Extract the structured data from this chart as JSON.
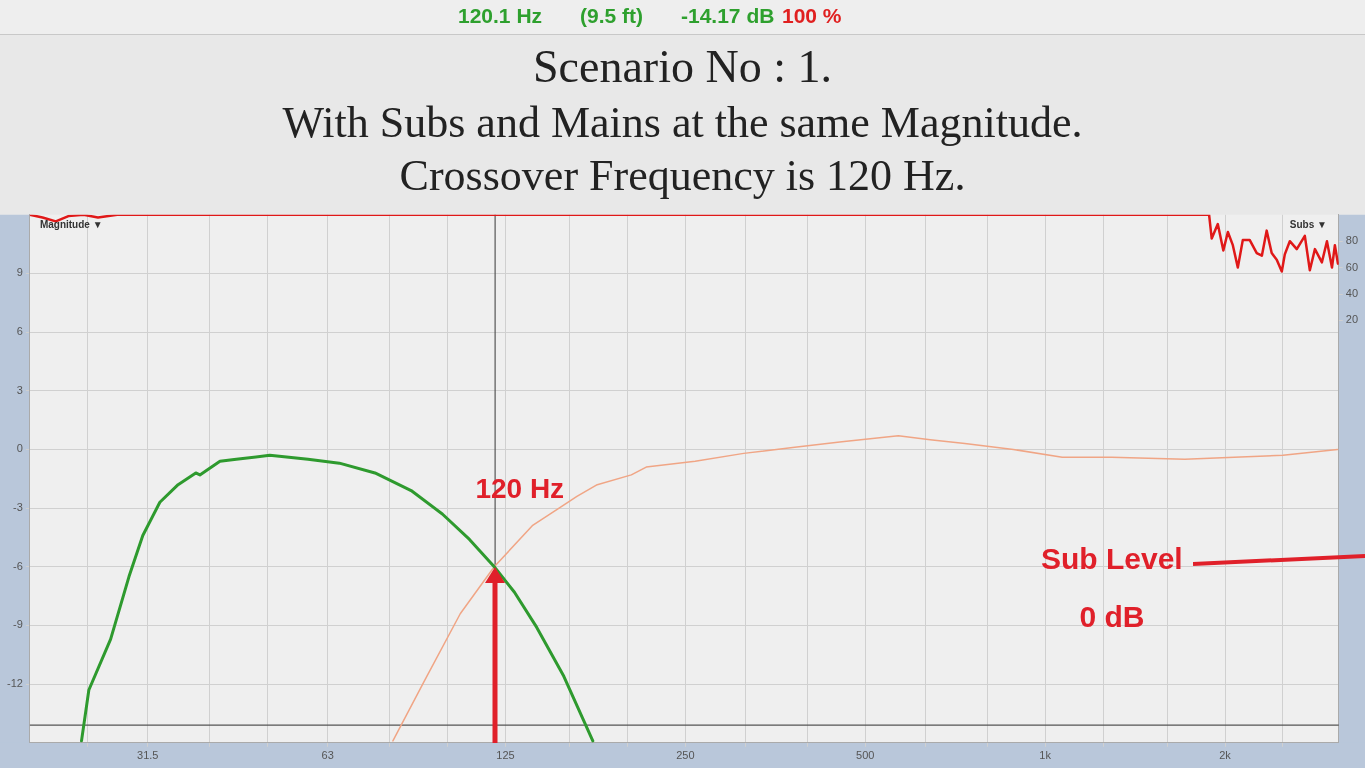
{
  "chart_data": {
    "type": "line",
    "title": "Scenario No : 1.",
    "subtitle": "With Subs and Mains at the same Magnitude.\nCrossover Frequency is 120 Hz.",
    "log": "x",
    "grid": true,
    "legend": false,
    "marker": "none",
    "line_style": "solid",
    "xlim": [
      20,
      3100
    ],
    "ylim": [
      -15,
      12
    ],
    "y2lim": [
      -300,
      100
    ],
    "xticks": [
      {
        "value": 25,
        "label": null
      },
      {
        "value": 31.5,
        "label": "31.5"
      },
      {
        "value": 40,
        "label": null
      },
      {
        "value": 50,
        "label": null
      },
      {
        "value": 63,
        "label": "63"
      },
      {
        "value": 80,
        "label": null
      },
      {
        "value": 100,
        "label": null
      },
      {
        "value": 125,
        "label": "125"
      },
      {
        "value": 160,
        "label": null
      },
      {
        "value": 200,
        "label": null
      },
      {
        "value": 250,
        "label": "250"
      },
      {
        "value": 315,
        "label": null
      },
      {
        "value": 400,
        "label": null
      },
      {
        "value": 500,
        "label": "500"
      },
      {
        "value": 630,
        "label": null
      },
      {
        "value": 800,
        "label": null
      },
      {
        "value": 1000,
        "label": "1k"
      },
      {
        "value": 1250,
        "label": null
      },
      {
        "value": 1600,
        "label": null
      },
      {
        "value": 2000,
        "label": "2k"
      },
      {
        "value": 2500,
        "label": null
      }
    ],
    "yticks": [
      -12,
      -9,
      -6,
      -3,
      0,
      3,
      6,
      9
    ],
    "y2ticks": [
      20,
      40,
      60,
      80
    ],
    "series": [
      {
        "color": "#2e9a2e",
        "x": [
          24.4,
          25.1,
          27.3,
          29.3,
          30.9,
          33,
          35.4,
          37.9,
          38.5,
          41.6,
          44.3,
          50.4,
          58.4,
          65.9,
          75.6,
          86.9,
          98,
          108.8,
          119.7,
          129.4,
          141,
          156.5,
          175
        ],
        "values": [
          -14.9,
          -12.3,
          -9.7,
          -6.5,
          -4.4,
          -2.7,
          -1.8,
          -1.2,
          -1.3,
          -0.6,
          -0.5,
          -0.3,
          -0.5,
          -0.7,
          -1.2,
          -2.1,
          -3.3,
          -4.6,
          -6,
          -7.3,
          -9.1,
          -11.6,
          -14.9
        ]
      },
      {
        "color": "#f0a585",
        "x": [
          81,
          91.6,
          105,
          119.7,
          138.6,
          164.6,
          178,
          203,
          215,
          259.6,
          313,
          378,
          457,
          568,
          642,
          734,
          885,
          1068,
          1292,
          1713,
          2072,
          2500,
          3085
        ],
        "values": [
          -14.9,
          -11.8,
          -8.4,
          -6,
          -3.9,
          -2.4,
          -1.8,
          -1.3,
          -0.9,
          -0.6,
          -0.2,
          0.1,
          0.4,
          0.7,
          0.5,
          0.3,
          0,
          -0.4,
          -0.4,
          -0.5,
          -0.4,
          -0.3,
          0
        ]
      },
      {
        "color": "#e01818",
        "axis": "y2",
        "x": [
          20,
          21,
          22.1,
          23.2,
          24.6,
          26,
          28,
          1881,
          1900,
          1945,
          1987,
          2022,
          2061,
          2101,
          2142,
          2199,
          2260,
          2305,
          2348,
          2394,
          2441,
          2489,
          2518,
          2567,
          2637,
          2720,
          2773,
          2828,
          2905,
          2962,
          3020,
          3054,
          3090
        ],
        "values": [
          100,
          98,
          95,
          99,
          100,
          98,
          100,
          100,
          82,
          93,
          73,
          87,
          77,
          60,
          81,
          81,
          71,
          69,
          88,
          71,
          66,
          57,
          70,
          80,
          74,
          84,
          58,
          74,
          64,
          80,
          60,
          77,
          63
        ]
      }
    ],
    "ref_lines": [
      {
        "axis": "y",
        "value": -14.1,
        "color": "#555555"
      },
      {
        "axis": "x",
        "value": 120.1,
        "color": "#555555"
      }
    ],
    "annotations": [
      "120.1 Hz",
      "(9.5 ft)",
      "-14.17 dB",
      "100 %",
      "Magnitude ▼",
      "Subs ▼",
      {
        "text": "120 Hz",
        "x": 120,
        "y": -6
      },
      "Sub Level",
      "0 dB"
    ]
  }
}
